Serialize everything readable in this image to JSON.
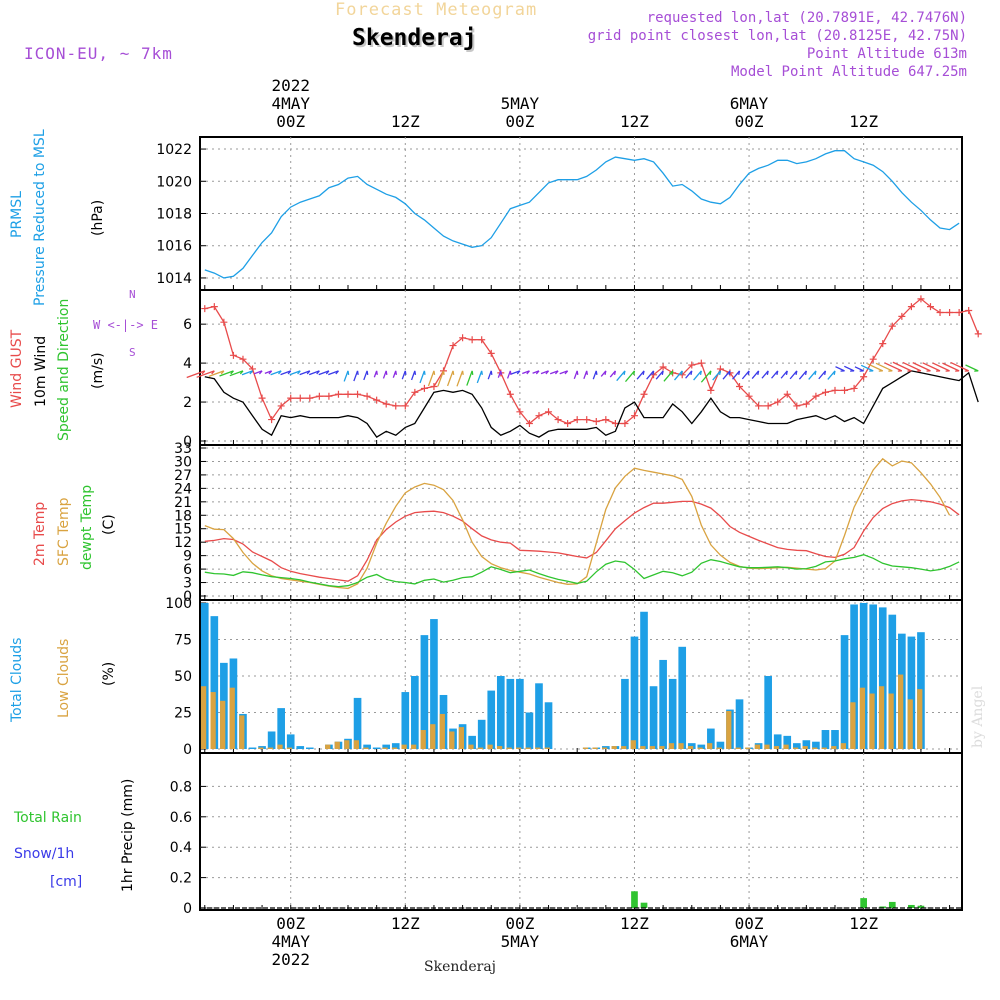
{
  "header": {
    "forecast_title": "Forecast Meteogram",
    "location": "Skenderaj",
    "model": "ICON-EU, ~ 7km",
    "requested": "requested lon,lat (20.7891E, 42.7476N)",
    "grid_point": "grid point closest lon,lat (20.8125E, 42.75N)",
    "point_alt": "Point Altitude 613m",
    "model_alt": "Model Point Altitude 647.25m",
    "footer_location": "Skenderaj",
    "watermark": "by Angel"
  },
  "time_axis": {
    "top_labels": [
      {
        "t": 0,
        "lines": [
          "2022",
          "4MAY",
          "00Z"
        ]
      },
      {
        "t": 12,
        "lines": [
          "12Z"
        ]
      },
      {
        "t": 24,
        "lines": [
          "5MAY",
          "00Z"
        ]
      },
      {
        "t": 36,
        "lines": [
          "12Z"
        ]
      },
      {
        "t": 48,
        "lines": [
          "6MAY",
          "00Z"
        ]
      },
      {
        "t": 60,
        "lines": [
          "12Z"
        ]
      }
    ],
    "bottom_labels": [
      {
        "t": 0,
        "lines": [
          "00Z",
          "4MAY",
          "2022"
        ]
      },
      {
        "t": 12,
        "lines": [
          "12Z"
        ]
      },
      {
        "t": 24,
        "lines": [
          "00Z",
          "5MAY"
        ]
      },
      {
        "t": 36,
        "lines": [
          "12Z"
        ]
      },
      {
        "t": 48,
        "lines": [
          "00Z",
          "6MAY"
        ]
      },
      {
        "t": 60,
        "lines": [
          "12Z"
        ]
      }
    ]
  },
  "panel_labels": {
    "pressure": {
      "name": "PRMSL",
      "desc": "Pressure Reduced to MSL",
      "unit": "(hPa)"
    },
    "wind": {
      "gust": "Wind GUST",
      "wind10": "10m Wind",
      "dir": "Speed and Direction",
      "unit": "(m/s)",
      "compass_ew": "W <-|-> E",
      "compass_n": "N",
      "compass_s": "S"
    },
    "temp": {
      "t2m": "2m Temp",
      "sfc": "SFC Temp",
      "dew": "dewpt Temp",
      "unit": "(C)"
    },
    "clouds": {
      "total": "Total Clouds",
      "low": "Low Clouds",
      "unit": "(%)"
    },
    "precip": {
      "rain": "Total  Rain",
      "snow": "Snow/1h",
      "cm": "[cm]",
      "ylabel": "1hr Precip (mm)"
    }
  },
  "colors": {
    "pressure": "#1e9fe6",
    "gust": "#e84b4b",
    "wind10": "#000000",
    "t2m": "#e84b4b",
    "sfc": "#d9a341",
    "dew": "#2fc42f",
    "total_clouds": "#1e9fe6",
    "low_clouds": "#d9a341",
    "rain": "#2fc42f",
    "snow": "#3a3ae8",
    "purple": "#a64ed6",
    "cyan_label": "#1ea0e6"
  },
  "chart_data": [
    {
      "type": "line",
      "name": "pressure",
      "x_start": -9,
      "x_step": 1,
      "ylim": [
        1013.5,
        1022.5
      ],
      "yticks": [
        1014,
        1016,
        1018,
        1020,
        1022
      ],
      "series": [
        {
          "name": "PRMSL",
          "values": [
            1014.5,
            1014.3,
            1014.0,
            1014.1,
            1014.6,
            1015.4,
            1016.2,
            1016.8,
            1017.8,
            1018.4,
            1018.7,
            1018.9,
            1019.1,
            1019.6,
            1019.8,
            1020.2,
            1020.3,
            1019.8,
            1019.5,
            1019.2,
            1019.0,
            1018.6,
            1018.0,
            1017.6,
            1017.1,
            1016.6,
            1016.3,
            1016.1,
            1015.9,
            1016.0,
            1016.5,
            1017.4,
            1018.3,
            1018.5,
            1018.7,
            1019.3,
            1019.9,
            1020.1,
            1020.1,
            1020.1,
            1020.3,
            1020.7,
            1021.2,
            1021.5,
            1021.4,
            1021.3,
            1021.4,
            1021.2,
            1020.5,
            1019.7,
            1019.8,
            1019.4,
            1018.9,
            1018.7,
            1018.6,
            1019.0,
            1019.8,
            1020.5,
            1020.8,
            1021.0,
            1021.3,
            1021.3,
            1021.1,
            1021.2,
            1021.4,
            1021.7,
            1021.9,
            1021.9,
            1021.4,
            1021.2,
            1021.0,
            1020.6,
            1020.0,
            1019.3,
            1018.7,
            1018.2,
            1017.6,
            1017.1,
            1017.0,
            1017.4
          ]
        }
      ]
    },
    {
      "type": "line",
      "name": "wind",
      "x_start": -9,
      "x_step": 1,
      "ylim": [
        0,
        7.6
      ],
      "yticks": [
        0,
        2,
        4,
        6
      ],
      "series": [
        {
          "name": "Wind GUST",
          "values": [
            6.8,
            6.9,
            6.1,
            4.4,
            4.2,
            3.7,
            2.2,
            1.1,
            1.8,
            2.2,
            2.2,
            2.2,
            2.3,
            2.3,
            2.4,
            2.4,
            2.4,
            2.3,
            2.1,
            1.9,
            1.8,
            1.8,
            2.5,
            2.7,
            2.8,
            3.6,
            4.9,
            5.3,
            5.2,
            5.2,
            4.5,
            3.5,
            2.4,
            1.5,
            0.9,
            1.3,
            1.5,
            1.1,
            0.9,
            1.1,
            1.1,
            1.0,
            1.1,
            0.9,
            0.9,
            1.3,
            2.4,
            3.4,
            3.8,
            3.5,
            3.4,
            3.9,
            4.0,
            2.6,
            3.7,
            3.5,
            2.8,
            2.3,
            1.8,
            1.8,
            2.0,
            2.4,
            1.8,
            1.9,
            2.3,
            2.5,
            2.6,
            2.6,
            2.7,
            3.3,
            4.2,
            5.0,
            5.9,
            6.4,
            6.9,
            7.3,
            6.9,
            6.6,
            6.6,
            6.6,
            6.7,
            5.5
          ]
        },
        {
          "name": "10m Wind",
          "values": [
            3.3,
            3.2,
            2.5,
            2.2,
            2.0,
            1.3,
            0.6,
            0.3,
            1.3,
            1.2,
            1.3,
            1.2,
            1.2,
            1.2,
            1.2,
            1.3,
            1.2,
            0.9,
            0.2,
            0.5,
            0.3,
            0.7,
            0.9,
            1.7,
            2.5,
            2.6,
            2.5,
            2.6,
            2.4,
            1.7,
            0.7,
            0.3,
            0.5,
            0.8,
            0.4,
            0.2,
            0.5,
            0.6,
            0.6,
            0.6,
            0.6,
            0.7,
            0.3,
            0.5,
            1.7,
            2.0,
            1.2,
            1.2,
            1.2,
            1.9,
            1.5,
            0.9,
            1.5,
            2.2,
            1.5,
            1.2,
            1.2,
            1.1,
            1.0,
            0.9,
            0.9,
            0.9,
            1.1,
            1.2,
            1.3,
            1.1,
            1.3,
            1.0,
            1.2,
            0.9,
            1.8,
            2.7,
            3.0,
            3.3,
            3.6,
            3.5,
            3.4,
            3.3,
            3.2,
            3.1,
            3.5,
            2.0
          ]
        }
      ]
    },
    {
      "type": "line",
      "name": "temperature",
      "x_start": -9,
      "x_step": 1,
      "ylim": [
        0,
        33
      ],
      "yticks": [
        0,
        3,
        6,
        9,
        12,
        15,
        18,
        21,
        24,
        27,
        30,
        33
      ],
      "series": [
        {
          "name": "2m Temp",
          "values": [
            12.2,
            12.4,
            12.8,
            12.6,
            11.6,
            9.8,
            8.8,
            7.8,
            6.3,
            5.5,
            5.0,
            4.6,
            4.2,
            3.9,
            3.6,
            3.3,
            4.5,
            8.0,
            12.5,
            14.8,
            16.5,
            17.8,
            18.6,
            18.8,
            18.9,
            18.6,
            17.8,
            16.7,
            15.0,
            13.4,
            12.5,
            12.0,
            11.8,
            10.2,
            10.1,
            10.0,
            9.8,
            9.6,
            9.2,
            8.8,
            8.5,
            9.7,
            12.3,
            15.0,
            16.8,
            18.5,
            19.7,
            20.7,
            20.7,
            20.9,
            21.1,
            21.1,
            20.5,
            19.6,
            17.8,
            15.5,
            14.2,
            13.3,
            12.4,
            11.6,
            10.8,
            10.4,
            10.2,
            10.1,
            9.4,
            8.8,
            8.6,
            9.3,
            10.8,
            14.5,
            17.5,
            19.5,
            20.6,
            21.2,
            21.5,
            21.3,
            21.0,
            20.5,
            19.7,
            18.1
          ]
        },
        {
          "name": "SFC Temp",
          "values": [
            15.7,
            14.9,
            14.8,
            12.8,
            9.7,
            7.3,
            5.6,
            4.5,
            3.9,
            3.6,
            3.3,
            3.0,
            2.6,
            2.2,
            1.9,
            1.7,
            2.7,
            6.2,
            11.8,
            16.2,
            20.0,
            23.0,
            24.3,
            25.1,
            24.7,
            23.7,
            21.3,
            17.0,
            12.0,
            8.8,
            7.2,
            6.3,
            5.7,
            5.3,
            4.9,
            4.2,
            3.6,
            3.0,
            2.6,
            2.7,
            4.3,
            11.8,
            19.3,
            24.1,
            26.7,
            28.5,
            28.0,
            27.6,
            27.2,
            26.8,
            26.0,
            22.2,
            15.8,
            11.4,
            9.1,
            7.5,
            6.6,
            6.2,
            6.1,
            6.2,
            6.3,
            6.4,
            6.2,
            6.0,
            5.8,
            6.1,
            7.8,
            13.5,
            19.8,
            24.0,
            28.1,
            30.6,
            29.0,
            30.1,
            29.7,
            27.5,
            25.0,
            22.0,
            18.0
          ]
        },
        {
          "name": "dewpt Temp",
          "values": [
            5.3,
            5.0,
            4.9,
            4.6,
            5.4,
            5.2,
            4.7,
            4.3,
            4.1,
            3.9,
            3.6,
            3.1,
            2.7,
            2.3,
            2.1,
            2.3,
            3.0,
            4.2,
            4.8,
            3.7,
            3.2,
            3.0,
            2.7,
            3.5,
            3.8,
            3.1,
            3.5,
            4.1,
            4.3,
            5.3,
            6.5,
            5.9,
            5.2,
            5.5,
            5.8,
            5.0,
            4.3,
            3.7,
            3.3,
            2.8,
            3.3,
            5.4,
            7.1,
            7.8,
            7.5,
            5.9,
            3.9,
            4.7,
            5.5,
            5.2,
            4.5,
            5.3,
            7.3,
            8.1,
            7.7,
            7.1,
            6.5,
            6.3,
            6.3,
            6.4,
            6.5,
            6.3,
            6.0,
            6.1,
            6.6,
            7.6,
            7.8,
            8.3,
            8.6,
            9.2,
            8.4,
            7.3,
            6.7,
            6.5,
            6.3,
            6.0,
            5.6,
            5.9,
            6.6,
            7.6
          ]
        }
      ]
    },
    {
      "type": "bar",
      "name": "clouds",
      "x_start": -9,
      "x_step": 1,
      "ylim": [
        0,
        100
      ],
      "yticks": [
        0,
        25,
        50,
        75,
        100
      ],
      "series": [
        {
          "name": "Total Clouds",
          "values": [
            100,
            91,
            59,
            62,
            24,
            1,
            2,
            12,
            28,
            10,
            2,
            1,
            0,
            3,
            5,
            7,
            35,
            3,
            1,
            3,
            4,
            39,
            50,
            78,
            89,
            37,
            14,
            17,
            9,
            20,
            40,
            50,
            48,
            48,
            25,
            45,
            32,
            0,
            0,
            0,
            1,
            1,
            2,
            2,
            48,
            77,
            94,
            43,
            61,
            48,
            70,
            4,
            3,
            14,
            5,
            27,
            34,
            1,
            4,
            50,
            10,
            9,
            4,
            6,
            5,
            13,
            13,
            78,
            99,
            100,
            99,
            97,
            92,
            79,
            77,
            80
          ]
        },
        {
          "name": "Low Clouds",
          "values": [
            43,
            39,
            33,
            42,
            23,
            0,
            1,
            1,
            3,
            1,
            0,
            0,
            0,
            3,
            5,
            6,
            6,
            1,
            0,
            1,
            1,
            3,
            3,
            13,
            17,
            24,
            12,
            15,
            3,
            1,
            3,
            2,
            1,
            1,
            1,
            1,
            1,
            0,
            0,
            0,
            1,
            1,
            1,
            2,
            2,
            6,
            2,
            2,
            2,
            4,
            4,
            2,
            1,
            4,
            1,
            26,
            1,
            1,
            3,
            3,
            2,
            3,
            1,
            2,
            1,
            1,
            2,
            4,
            32,
            42,
            38,
            43,
            38,
            51,
            34,
            41
          ]
        }
      ]
    },
    {
      "type": "bar",
      "name": "precip",
      "x_start": -9,
      "x_step": 1,
      "ylim": [
        0,
        1.0
      ],
      "yticks": [
        0,
        0.2,
        0.4,
        0.6,
        0.8
      ],
      "series": [
        {
          "name": "Total Rain",
          "points": [
            [
              36,
              0.11
            ],
            [
              37,
              0.035
            ],
            [
              60,
              0.065
            ],
            [
              62,
              0.01
            ],
            [
              63,
              0.04
            ],
            [
              65,
              0.02
            ],
            [
              66,
              0.015
            ]
          ]
        }
      ]
    }
  ]
}
